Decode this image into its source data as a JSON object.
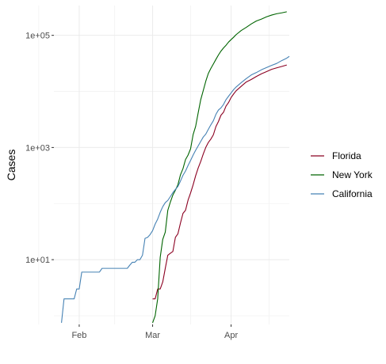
{
  "chart_data": {
    "type": "line",
    "title": "",
    "xlabel": "",
    "ylabel": "Cases",
    "y_scale": "log10",
    "grid": true,
    "legend_position": "right",
    "xlim": [
      "2020-01-22",
      "2020-04-24"
    ],
    "ylim": [
      0.7,
      340000
    ],
    "x_ticks": [
      {
        "label": "Feb",
        "date": "2020-02-01"
      },
      {
        "label": "Mar",
        "date": "2020-03-01"
      },
      {
        "label": "Apr",
        "date": "2020-04-01"
      }
    ],
    "x_minor_dates": [
      "2020-01-16",
      "2020-02-15",
      "2020-03-16",
      "2020-04-16"
    ],
    "y_ticks": [
      {
        "label": "1e+01",
        "value": 10
      },
      {
        "label": "1e+03",
        "value": 1000
      },
      {
        "label": "1e+05",
        "value": 100000
      }
    ],
    "y_minor_values": [
      1,
      100,
      10000
    ],
    "series": [
      {
        "name": "Florida",
        "color": "#8b0021",
        "points": [
          [
            "2020-03-01",
            2
          ],
          [
            "2020-03-02",
            2
          ],
          [
            "2020-03-03",
            3
          ],
          [
            "2020-03-04",
            3
          ],
          [
            "2020-03-05",
            4
          ],
          [
            "2020-03-06",
            7
          ],
          [
            "2020-03-07",
            12
          ],
          [
            "2020-03-08",
            13
          ],
          [
            "2020-03-09",
            14
          ],
          [
            "2020-03-10",
            25
          ],
          [
            "2020-03-11",
            29
          ],
          [
            "2020-03-12",
            45
          ],
          [
            "2020-03-13",
            67
          ],
          [
            "2020-03-14",
            76
          ],
          [
            "2020-03-15",
            115
          ],
          [
            "2020-03-16",
            155
          ],
          [
            "2020-03-17",
            216
          ],
          [
            "2020-03-18",
            314
          ],
          [
            "2020-03-19",
            431
          ],
          [
            "2020-03-20",
            563
          ],
          [
            "2020-03-21",
            763
          ],
          [
            "2020-03-22",
            1004
          ],
          [
            "2020-03-23",
            1227
          ],
          [
            "2020-03-24",
            1412
          ],
          [
            "2020-03-25",
            1682
          ],
          [
            "2020-03-26",
            2357
          ],
          [
            "2020-03-27",
            2900
          ],
          [
            "2020-03-28",
            3763
          ],
          [
            "2020-03-29",
            4246
          ],
          [
            "2020-03-30",
            5473
          ],
          [
            "2020-03-31",
            6338
          ],
          [
            "2020-04-01",
            7773
          ],
          [
            "2020-04-02",
            9008
          ],
          [
            "2020-04-03",
            10268
          ],
          [
            "2020-04-05",
            12350
          ],
          [
            "2020-04-07",
            14747
          ],
          [
            "2020-04-09",
            16364
          ],
          [
            "2020-04-11",
            18494
          ],
          [
            "2020-04-13",
            20601
          ],
          [
            "2020-04-15",
            22519
          ],
          [
            "2020-04-17",
            24759
          ],
          [
            "2020-04-19",
            26314
          ],
          [
            "2020-04-21",
            27869
          ],
          [
            "2020-04-23",
            29648
          ]
        ]
      },
      {
        "name": "New York",
        "color": "#006400",
        "points": [
          [
            "2020-03-01",
            0.75
          ],
          [
            "2020-03-02",
            1
          ],
          [
            "2020-03-03",
            2
          ],
          [
            "2020-03-04",
            11
          ],
          [
            "2020-03-05",
            23
          ],
          [
            "2020-03-06",
            31
          ],
          [
            "2020-03-07",
            76
          ],
          [
            "2020-03-08",
            106
          ],
          [
            "2020-03-09",
            142
          ],
          [
            "2020-03-10",
            173
          ],
          [
            "2020-03-11",
            217
          ],
          [
            "2020-03-12",
            326
          ],
          [
            "2020-03-13",
            421
          ],
          [
            "2020-03-14",
            610
          ],
          [
            "2020-03-15",
            732
          ],
          [
            "2020-03-16",
            950
          ],
          [
            "2020-03-17",
            1700
          ],
          [
            "2020-03-18",
            2382
          ],
          [
            "2020-03-19",
            4152
          ],
          [
            "2020-03-20",
            7102
          ],
          [
            "2020-03-21",
            10356
          ],
          [
            "2020-03-22",
            15168
          ],
          [
            "2020-03-23",
            20875
          ],
          [
            "2020-03-24",
            25665
          ],
          [
            "2020-03-25",
            30811
          ],
          [
            "2020-03-26",
            37258
          ],
          [
            "2020-03-27",
            44635
          ],
          [
            "2020-03-28",
            52318
          ],
          [
            "2020-03-29",
            59513
          ],
          [
            "2020-03-30",
            66497
          ],
          [
            "2020-03-31",
            75795
          ],
          [
            "2020-04-01",
            83889
          ],
          [
            "2020-04-02",
            92506
          ],
          [
            "2020-04-03",
            102987
          ],
          [
            "2020-04-05",
            122031
          ],
          [
            "2020-04-07",
            138863
          ],
          [
            "2020-04-09",
            159937
          ],
          [
            "2020-04-11",
            180458
          ],
          [
            "2020-04-13",
            195031
          ],
          [
            "2020-04-15",
            213779
          ],
          [
            "2020-04-17",
            229642
          ],
          [
            "2020-04-19",
            242786
          ],
          [
            "2020-04-21",
            251690
          ],
          [
            "2020-04-23",
            263460
          ]
        ]
      },
      {
        "name": "California",
        "color": "#4682b4",
        "points": [
          [
            "2020-01-25",
            0.75
          ],
          [
            "2020-01-26",
            2
          ],
          [
            "2020-01-30",
            2
          ],
          [
            "2020-01-31",
            3
          ],
          [
            "2020-02-01",
            3
          ],
          [
            "2020-02-02",
            6
          ],
          [
            "2020-02-09",
            6
          ],
          [
            "2020-02-10",
            7
          ],
          [
            "2020-02-20",
            7
          ],
          [
            "2020-02-21",
            8
          ],
          [
            "2020-02-22",
            9
          ],
          [
            "2020-02-23",
            9
          ],
          [
            "2020-02-24",
            10
          ],
          [
            "2020-02-25",
            10
          ],
          [
            "2020-02-26",
            12
          ],
          [
            "2020-02-27",
            24
          ],
          [
            "2020-02-28",
            25
          ],
          [
            "2020-02-29",
            28
          ],
          [
            "2020-03-01",
            33
          ],
          [
            "2020-03-02",
            43
          ],
          [
            "2020-03-03",
            53
          ],
          [
            "2020-03-04",
            70
          ],
          [
            "2020-03-05",
            88
          ],
          [
            "2020-03-06",
            104
          ],
          [
            "2020-03-07",
            114
          ],
          [
            "2020-03-08",
            133
          ],
          [
            "2020-03-09",
            157
          ],
          [
            "2020-03-10",
            179
          ],
          [
            "2020-03-11",
            202
          ],
          [
            "2020-03-12",
            252
          ],
          [
            "2020-03-13",
            320
          ],
          [
            "2020-03-14",
            381
          ],
          [
            "2020-03-15",
            478
          ],
          [
            "2020-03-16",
            588
          ],
          [
            "2020-03-17",
            732
          ],
          [
            "2020-03-18",
            893
          ],
          [
            "2020-03-19",
            1067
          ],
          [
            "2020-03-20",
            1283
          ],
          [
            "2020-03-21",
            1536
          ],
          [
            "2020-03-22",
            1733
          ],
          [
            "2020-03-23",
            2102
          ],
          [
            "2020-03-24",
            2535
          ],
          [
            "2020-03-25",
            3006
          ],
          [
            "2020-03-26",
            3899
          ],
          [
            "2020-03-27",
            4657
          ],
          [
            "2020-03-28",
            5095
          ],
          [
            "2020-03-29",
            5852
          ],
          [
            "2020-03-30",
            7138
          ],
          [
            "2020-03-31",
            8210
          ],
          [
            "2020-04-01",
            9399
          ],
          [
            "2020-04-02",
            10773
          ],
          [
            "2020-04-03",
            12004
          ],
          [
            "2020-04-05",
            14336
          ],
          [
            "2020-04-07",
            16957
          ],
          [
            "2020-04-09",
            19710
          ],
          [
            "2020-04-11",
            21706
          ],
          [
            "2020-04-13",
            24334
          ],
          [
            "2020-04-15",
            26686
          ],
          [
            "2020-04-17",
            29157
          ],
          [
            "2020-04-19",
            31544
          ],
          [
            "2020-04-21",
            35465
          ],
          [
            "2020-04-23",
            39254
          ],
          [
            "2020-04-24",
            42164
          ]
        ]
      }
    ]
  }
}
